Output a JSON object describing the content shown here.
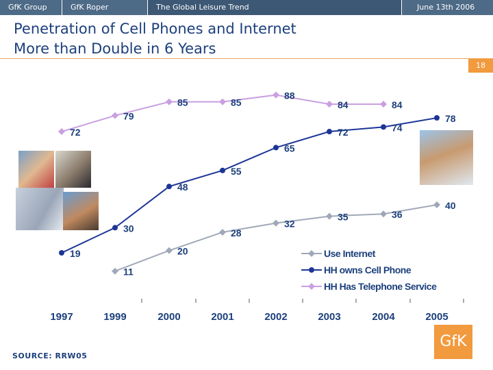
{
  "header": {
    "segments": [
      "GfK Group",
      "GfK Roper",
      "The Global Leisure Trend",
      "June 13th 2006"
    ]
  },
  "slide": {
    "title": "Penetration of Cell Phones and Internet\nMore than Double in 6 Years",
    "page_number": "18",
    "source": "SOURCE: RRW05",
    "logo_text": "GfK"
  },
  "colors": {
    "header_bg": "#4d6a86",
    "title": "#1c3f7c",
    "accent": "#f19a3e",
    "internet": "#a0a8b8",
    "cell": "#1d3596",
    "telephone": "#c9a0e0"
  },
  "chart_data": {
    "type": "line",
    "title": "Penetration of Cell Phones and Internet More than Double in 6 Years",
    "xlabel": "",
    "ylabel": "",
    "categories": [
      "1997",
      "1999",
      "2000",
      "2001",
      "2002",
      "2003",
      "2004",
      "2005"
    ],
    "ylim": [
      0,
      100
    ],
    "grid": false,
    "legend_position": "bottom-right",
    "series": [
      {
        "name": "Use Internet",
        "color": "#a0a8b8",
        "values": [
          null,
          11,
          20,
          28,
          32,
          35,
          36,
          40
        ]
      },
      {
        "name": "HH owns Cell Phone",
        "color": "#1d3596",
        "values": [
          19,
          30,
          48,
          55,
          65,
          72,
          74,
          78
        ]
      },
      {
        "name": "HH Has Telephone Service",
        "color": "#c9a0e0",
        "values": [
          72,
          79,
          85,
          85,
          88,
          84,
          84,
          null
        ]
      }
    ]
  }
}
